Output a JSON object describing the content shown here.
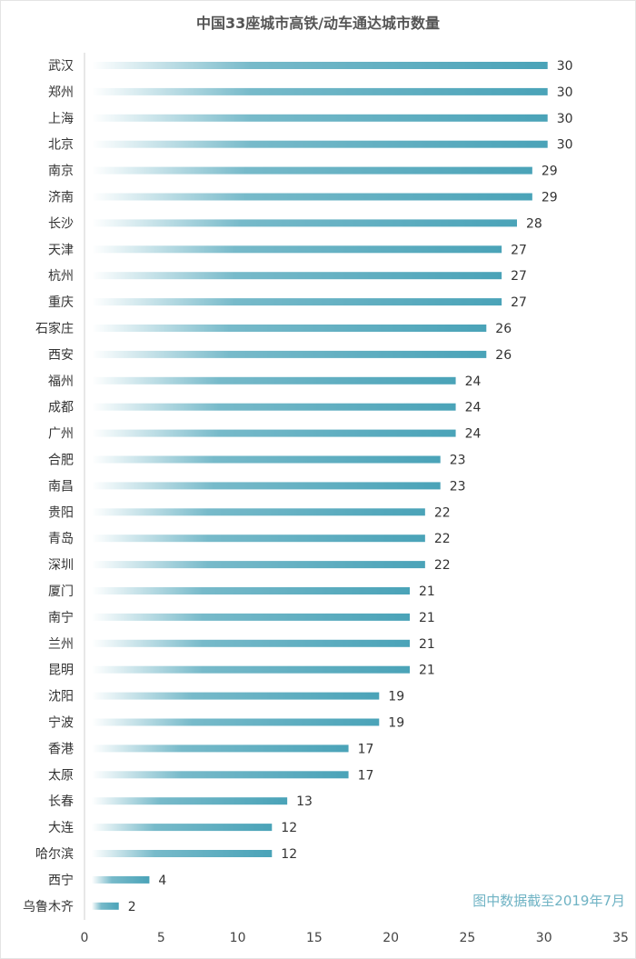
{
  "chart_data": {
    "type": "bar",
    "orientation": "horizontal",
    "title": "中国33座城市高铁/动车通达城市数量",
    "categories": [
      "武汉",
      "郑州",
      "上海",
      "北京",
      "南京",
      "济南",
      "长沙",
      "天津",
      "杭州",
      "重庆",
      "石家庄",
      "西安",
      "福州",
      "成都",
      "广州",
      "合肥",
      "南昌",
      "贵阳",
      "青岛",
      "深圳",
      "厦门",
      "南宁",
      "兰州",
      "昆明",
      "沈阳",
      "宁波",
      "香港",
      "太原",
      "长春",
      "大连",
      "哈尔滨",
      "西宁",
      "乌鲁木齐"
    ],
    "values": [
      30,
      30,
      30,
      30,
      29,
      29,
      28,
      27,
      27,
      27,
      26,
      26,
      24,
      24,
      24,
      23,
      23,
      22,
      22,
      22,
      21,
      21,
      21,
      21,
      19,
      19,
      17,
      17,
      13,
      12,
      12,
      4,
      2
    ],
    "xlim": [
      0,
      35
    ],
    "xticks": [
      0,
      5,
      10,
      15,
      20,
      25,
      30,
      35
    ],
    "grid": false,
    "data_labels": true,
    "bar_color": "#4aa3b8",
    "annotation": "图中数据截至2019年7月",
    "annotation_color": "#6fb3c4"
  }
}
